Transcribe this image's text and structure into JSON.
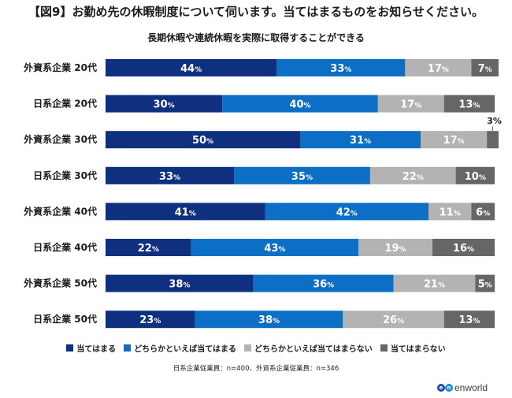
{
  "title": "【図9】お勤め先の休暇制度について伺います。当てはまるものをお知らせください。",
  "chart_data": {
    "type": "bar",
    "orientation": "horizontal",
    "stacked": true,
    "percent": true,
    "title": "長期休暇や連続休暇を実際に取得することができる",
    "xlabel": "",
    "ylabel": "",
    "xlim": [
      0,
      100
    ],
    "grid": false,
    "legend_position": "bottom",
    "categories": [
      "外資系企業 20代",
      "日系企業 20代",
      "外資系企業 30代",
      "日系企業 30代",
      "外資系企業 40代",
      "日系企業 40代",
      "外資系企業 50代",
      "日系企業 50代"
    ],
    "series": [
      {
        "name": "当てはまる",
        "color": "#0f2f7f",
        "values": [
          44,
          30,
          50,
          33,
          41,
          22,
          38,
          23
        ]
      },
      {
        "name": "どちらかといえば当てはまる",
        "color": "#0c6ec4",
        "values": [
          33,
          40,
          31,
          35,
          42,
          43,
          36,
          38
        ]
      },
      {
        "name": "どちらかといえば当てはまらない",
        "color": "#b3b3b3",
        "values": [
          17,
          17,
          17,
          22,
          11,
          19,
          21,
          26
        ]
      },
      {
        "name": "当てはまらない",
        "color": "#666666",
        "values": [
          7,
          13,
          3,
          10,
          6,
          16,
          5,
          13
        ]
      }
    ],
    "value_suffix": "%"
  },
  "note": "日系企業従業員：n=400、外資系企業従業員：n=346",
  "logo": {
    "badge": [
      "e",
      "n"
    ],
    "text": "enworld",
    "colors": [
      "#1f4aa0",
      "#1a8fd8"
    ]
  }
}
